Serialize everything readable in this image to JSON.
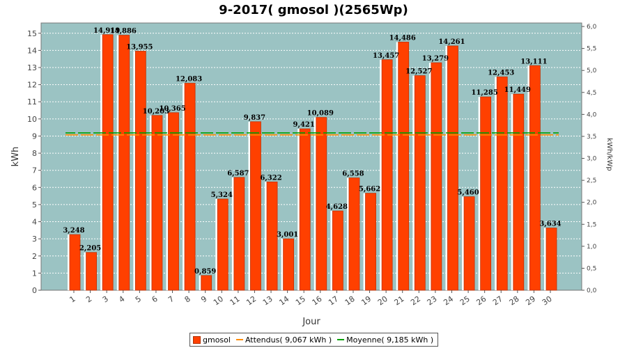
{
  "chart_data": {
    "type": "bar",
    "title": "9-2017( gmosol )(2565Wp)",
    "xlabel": "Jour",
    "ylabel": "kWh",
    "y2label": "kWh/kWp",
    "categories": [
      "1",
      "2",
      "3",
      "4",
      "5",
      "6",
      "7",
      "8",
      "9",
      "10",
      "11",
      "12",
      "13",
      "14",
      "15",
      "16",
      "17",
      "18",
      "19",
      "20",
      "21",
      "22",
      "23",
      "24",
      "25",
      "26",
      "27",
      "28",
      "29",
      "30"
    ],
    "series": [
      {
        "name": "gmosol",
        "type": "bar",
        "color": "#ff4000",
        "values": [
          3.248,
          2.205,
          14.919,
          14.886,
          13.955,
          10.203,
          10.365,
          12.083,
          0.859,
          5.324,
          6.587,
          9.837,
          6.322,
          3.001,
          9.421,
          10.089,
          4.628,
          6.558,
          5.662,
          13.457,
          14.486,
          12.527,
          13.279,
          14.261,
          5.46,
          11.285,
          12.453,
          11.449,
          13.111,
          3.634
        ],
        "labels": [
          "3,248",
          "2,205",
          "14,919",
          "14,886",
          "13,955",
          "10,203",
          "10,365",
          "12,083",
          "0,859",
          "5,324",
          "6,587",
          "9,837",
          "6,322",
          "3,001",
          "9,421",
          "10,089",
          "4,628",
          "6,558",
          "5,662",
          "13,457",
          "14,486",
          "12,527",
          "13,279",
          "14,261",
          "5,460",
          "11,285",
          "12,453",
          "11,449",
          "13,111",
          "3,634"
        ]
      },
      {
        "name": "Attendus( 9,067 kWh )",
        "type": "line",
        "color": "#ff8c00",
        "value": 9.067
      },
      {
        "name": "Moyenne( 9,185 kWh )",
        "type": "line",
        "color": "#00a000",
        "value": 9.185
      }
    ],
    "ylim": [
      0,
      15.6
    ],
    "yticks": [
      "0",
      "1",
      "2",
      "3",
      "4",
      "5",
      "6",
      "7",
      "8",
      "9",
      "10",
      "11",
      "12",
      "13",
      "14",
      "15"
    ],
    "y2lim": [
      0,
      6.08
    ],
    "y2ticks": [
      "0,0",
      "0,5",
      "1,0",
      "1,5",
      "2,0",
      "2,5",
      "3,0",
      "3,5",
      "4,0",
      "4,5",
      "5,0",
      "5,5",
      "6,0"
    ],
    "grid": true,
    "plot_background": "#9bc3c3",
    "legend_position": "bottom"
  }
}
